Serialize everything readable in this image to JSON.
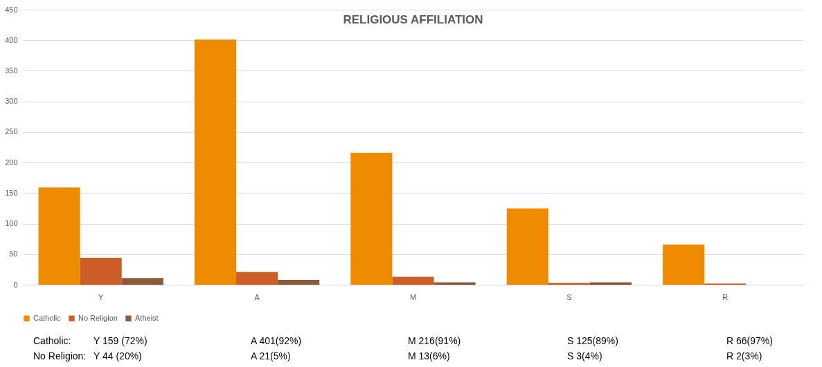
{
  "chart_data": {
    "type": "bar",
    "title": "RELIGIOUS AFFILIATION",
    "categories": [
      "Y",
      "A",
      "M",
      "S",
      "R"
    ],
    "series": [
      {
        "name": "Catholic",
        "color": "#ef8b00",
        "values": [
          159,
          401,
          216,
          125,
          66
        ]
      },
      {
        "name": "No Religion",
        "color": "#cc5f28",
        "values": [
          44,
          21,
          13,
          3,
          2
        ]
      },
      {
        "name": "Atheist",
        "color": "#8e5a3e",
        "values": [
          11,
          8,
          4,
          4,
          0
        ]
      }
    ],
    "ylim": [
      0,
      450
    ],
    "yticks": [
      0,
      50,
      100,
      150,
      200,
      250,
      300,
      350,
      400,
      450
    ],
    "grid": "y",
    "legend": "bottom",
    "annotations": [
      "Catholic:",
      "Y 159 (72%)",
      "A 401(92%)",
      "M 216(91%)",
      "S 125(89%)",
      "R 66(97%)",
      "No Religion:",
      "Y 44 (20%)",
      "A 21(5%)",
      "M 13(6%)",
      "S 3(4%)",
      "R 2(3%)"
    ]
  }
}
